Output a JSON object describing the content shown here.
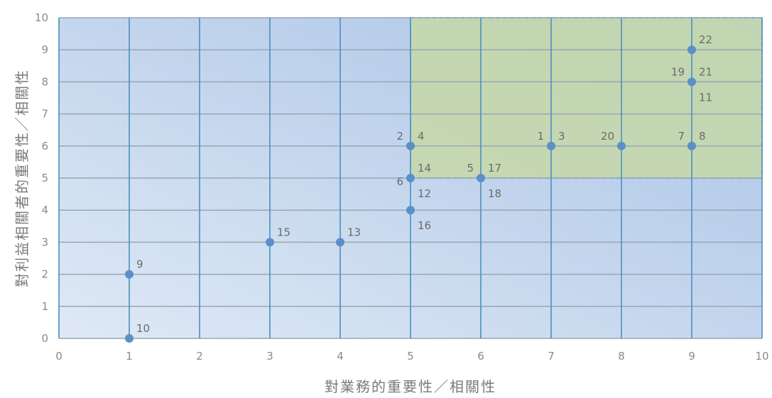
{
  "chart_data": {
    "type": "scatter",
    "title": "",
    "xlabel": "對業務的重要性／相關性",
    "ylabel": "對利益相關者的重要性／相關性",
    "xlim": [
      0,
      10
    ],
    "ylim": [
      0,
      10
    ],
    "x_ticks": [
      "0",
      "1",
      "2",
      "3",
      "4",
      "5",
      "6",
      "7",
      "8",
      "9",
      "10"
    ],
    "y_ticks": [
      "0",
      "1",
      "2",
      "3",
      "4",
      "5",
      "6",
      "7",
      "8",
      "9",
      "10"
    ],
    "grid": true,
    "highlight_region": {
      "x": [
        5,
        10
      ],
      "y": [
        5,
        10
      ]
    },
    "points": [
      {
        "x": 1,
        "y": 2
      },
      {
        "x": 1,
        "y": 0
      },
      {
        "x": 3,
        "y": 3
      },
      {
        "x": 4,
        "y": 3
      },
      {
        "x": 5,
        "y": 6
      },
      {
        "x": 5,
        "y": 5
      },
      {
        "x": 5,
        "y": 4
      },
      {
        "x": 6,
        "y": 5
      },
      {
        "x": 7,
        "y": 6
      },
      {
        "x": 8,
        "y": 6
      },
      {
        "x": 9,
        "y": 6
      },
      {
        "x": 9,
        "y": 8
      },
      {
        "x": 9,
        "y": 9
      }
    ],
    "point_labels": [
      {
        "text": "9",
        "x": 1,
        "y": 2,
        "pos": "upper-right"
      },
      {
        "text": "10",
        "x": 1,
        "y": 0,
        "pos": "upper-right"
      },
      {
        "text": "15",
        "x": 3,
        "y": 3,
        "pos": "upper-right"
      },
      {
        "text": "13",
        "x": 4,
        "y": 3,
        "pos": "upper-right"
      },
      {
        "text": "2",
        "x": 5,
        "y": 6,
        "pos": "upper-left"
      },
      {
        "text": "4",
        "x": 5,
        "y": 6,
        "pos": "upper-right"
      },
      {
        "text": "14",
        "x": 5,
        "y": 5,
        "pos": "upper-right"
      },
      {
        "text": "6",
        "x": 5,
        "y": 5,
        "pos": "lower-left"
      },
      {
        "text": "12",
        "x": 5,
        "y": 5,
        "pos": "lower-right"
      },
      {
        "text": "16",
        "x": 5,
        "y": 4,
        "pos": "lower-right"
      },
      {
        "text": "5",
        "x": 6,
        "y": 5,
        "pos": "upper-left"
      },
      {
        "text": "17",
        "x": 6,
        "y": 5,
        "pos": "upper-right"
      },
      {
        "text": "18",
        "x": 6,
        "y": 5,
        "pos": "lower-right"
      },
      {
        "text": "1",
        "x": 7,
        "y": 6,
        "pos": "upper-left"
      },
      {
        "text": "3",
        "x": 7,
        "y": 6,
        "pos": "upper-right"
      },
      {
        "text": "20",
        "x": 8,
        "y": 6,
        "pos": "upper-left"
      },
      {
        "text": "7",
        "x": 9,
        "y": 6,
        "pos": "upper-left"
      },
      {
        "text": "8",
        "x": 9,
        "y": 6,
        "pos": "upper-right"
      },
      {
        "text": "19",
        "x": 9,
        "y": 8,
        "pos": "upper-left"
      },
      {
        "text": "21",
        "x": 9,
        "y": 8,
        "pos": "upper-right"
      },
      {
        "text": "11",
        "x": 9,
        "y": 8,
        "pos": "lower-right"
      },
      {
        "text": "22",
        "x": 9,
        "y": 9,
        "pos": "upper-right"
      }
    ],
    "colors": {
      "point": "#5b8fc9",
      "vertical_grid": "#4a8fbf",
      "horizontal_grid": "#9aa6b2",
      "highlight_fill": "#c5d8a8",
      "highlight_border": "#8fb0cf",
      "bg_light": "#dfe9f5",
      "bg_dark": "#a9c3e6"
    }
  }
}
